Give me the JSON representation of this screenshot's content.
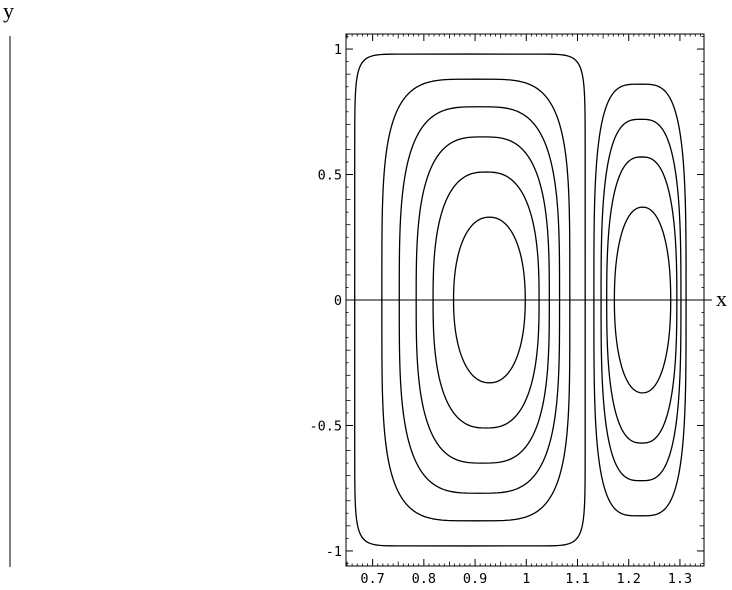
{
  "chart_data": {
    "type": "contour",
    "x_axis_label": "x",
    "y_axis_label": "y",
    "xlim": [
      0.648,
      1.347
    ],
    "ylim": [
      -1.06,
      1.06
    ],
    "x_ticks": [
      {
        "value": 0.7,
        "label": "0.7"
      },
      {
        "value": 0.8,
        "label": "0.8"
      },
      {
        "value": 0.9,
        "label": "0.9"
      },
      {
        "value": 1.0,
        "label": "1"
      },
      {
        "value": 1.1,
        "label": "1.1"
      },
      {
        "value": 1.2,
        "label": "1.2"
      },
      {
        "value": 1.3,
        "label": "1.3"
      }
    ],
    "y_ticks": [
      {
        "value": 1,
        "label": "1"
      },
      {
        "value": 0.5,
        "label": "0.5"
      },
      {
        "value": 0,
        "label": "0"
      },
      {
        "value": -0.5,
        "label": "-0.5"
      },
      {
        "value": -1,
        "label": "-1"
      }
    ],
    "grid": false,
    "contours": [
      {
        "cell": "left",
        "x_range": [
          0.665,
          1.115
        ],
        "y_range": [
          -0.98,
          0.98
        ]
      },
      {
        "cell": "left",
        "x_range": [
          0.718,
          1.085
        ],
        "y_range": [
          -0.88,
          0.88
        ]
      },
      {
        "cell": "left",
        "x_range": [
          0.752,
          1.065
        ],
        "y_range": [
          -0.77,
          0.77
        ]
      },
      {
        "cell": "left",
        "x_range": [
          0.785,
          1.045
        ],
        "y_range": [
          -0.65,
          0.65
        ]
      },
      {
        "cell": "left",
        "x_range": [
          0.818,
          1.025
        ],
        "y_range": [
          -0.51,
          0.51
        ]
      },
      {
        "cell": "left",
        "x_range": [
          0.858,
          0.998
        ],
        "y_range": [
          -0.33,
          0.33
        ]
      },
      {
        "cell": "right",
        "x_range": [
          1.132,
          1.312
        ],
        "y_range": [
          -0.86,
          0.86
        ]
      },
      {
        "cell": "right",
        "x_range": [
          1.146,
          1.302
        ],
        "y_range": [
          -0.72,
          0.72
        ]
      },
      {
        "cell": "right",
        "x_range": [
          1.157,
          1.294
        ],
        "y_range": [
          -0.57,
          0.57
        ]
      },
      {
        "cell": "right",
        "x_range": [
          1.172,
          1.282
        ],
        "y_range": [
          -0.37,
          0.37
        ]
      }
    ]
  }
}
